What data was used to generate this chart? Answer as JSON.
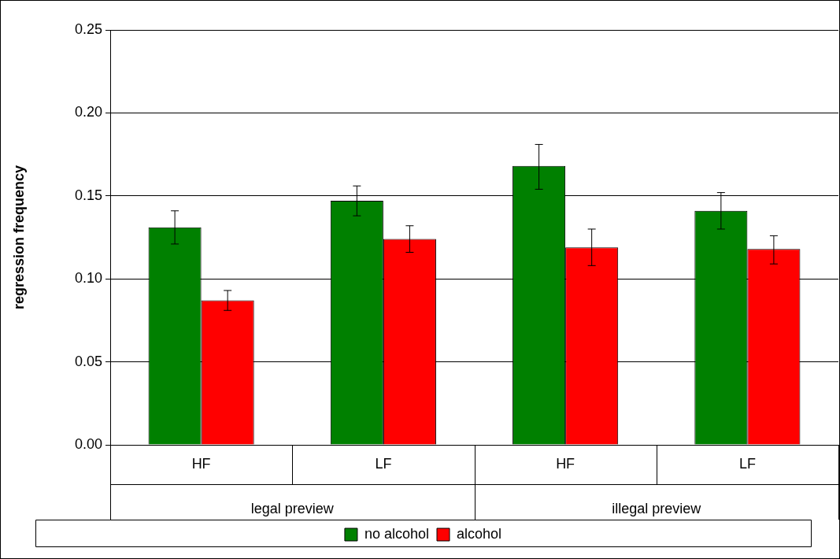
{
  "chart_data": {
    "type": "bar",
    "ylabel": "regression frequency",
    "categories": [
      "HF",
      "LF",
      "HF",
      "LF"
    ],
    "annotations": [
      "legal preview",
      "illegal preview"
    ],
    "series": [
      {
        "name": "no alcohol",
        "color": "#008000",
        "values": [
          0.131,
          0.147,
          0.168,
          0.141
        ],
        "errors": [
          [
            0.121,
            0.141
          ],
          [
            0.138,
            0.156
          ],
          [
            0.154,
            0.181
          ],
          [
            0.13,
            0.152
          ]
        ]
      },
      {
        "name": "alcohol",
        "color": "#ff0000",
        "values": [
          0.087,
          0.124,
          0.119,
          0.118
        ],
        "errors": [
          [
            0.081,
            0.093
          ],
          [
            0.116,
            0.132
          ],
          [
            0.108,
            0.13
          ],
          [
            0.109,
            0.126
          ]
        ]
      }
    ],
    "ylim": [
      0,
      0.25
    ],
    "yticks": [
      {
        "value": 0,
        "label": "0.00"
      },
      {
        "value": 0.05,
        "label": "0.05"
      },
      {
        "value": 0.1,
        "label": "0.10"
      },
      {
        "value": 0.15,
        "label": "0.15"
      },
      {
        "value": 0.2,
        "label": "0.20"
      },
      {
        "value": 0.25,
        "label": "0.25"
      }
    ],
    "grid": "y",
    "legend": "bottom"
  }
}
